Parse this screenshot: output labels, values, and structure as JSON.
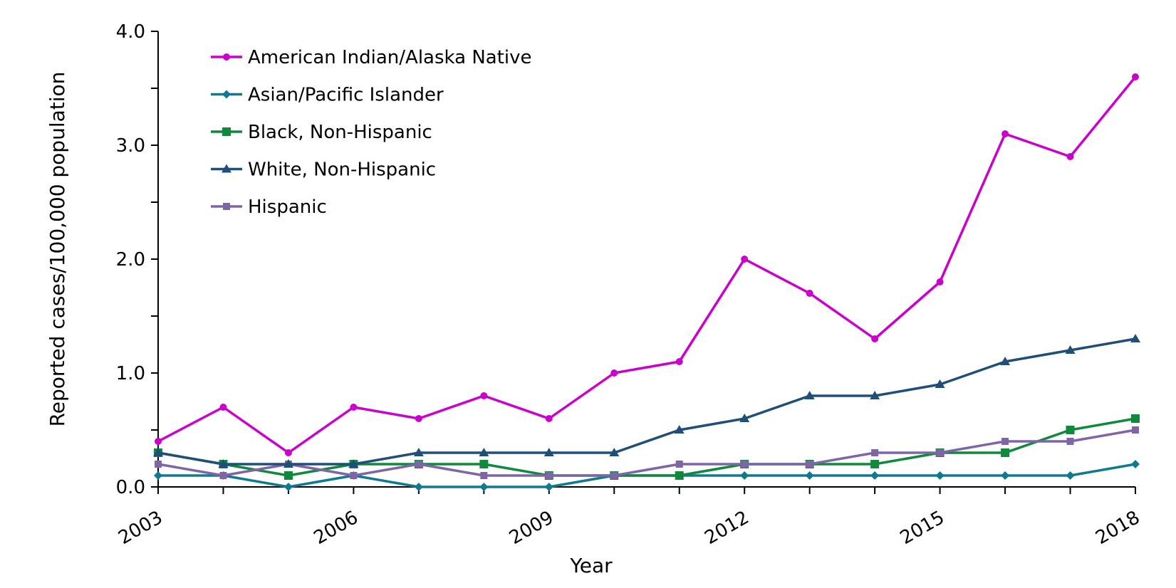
{
  "chart_data": {
    "type": "line",
    "xlabel": "Year",
    "ylabel": "Reported cases/100,000 population",
    "x": [
      2003,
      2004,
      2005,
      2006,
      2007,
      2008,
      2009,
      2010,
      2011,
      2012,
      2013,
      2014,
      2015,
      2016,
      2017,
      2018
    ],
    "x_tick_labels": [
      "2003",
      "2006",
      "2009",
      "2012",
      "2015",
      "2018"
    ],
    "y_tick_labels": [
      "0.0",
      "1.0",
      "2.0",
      "3.0",
      "4.0"
    ],
    "ylim": [
      0,
      4
    ],
    "xlim": [
      2003,
      2018
    ],
    "grid": false,
    "legend_position": "top-left",
    "series": [
      {
        "name": "American Indian/Alaska Native",
        "color": "#CC00CC",
        "marker": "circle",
        "values": [
          0.4,
          0.7,
          0.3,
          0.7,
          0.6,
          0.8,
          0.6,
          1.0,
          1.1,
          2.0,
          1.7,
          1.3,
          1.8,
          3.1,
          2.9,
          3.6
        ]
      },
      {
        "name": "Asian/Pacific Islander",
        "color": "#0E7A8F",
        "marker": "diamond",
        "values": [
          0.1,
          0.1,
          0.0,
          0.1,
          0.0,
          0.0,
          0.0,
          0.1,
          0.1,
          0.1,
          0.1,
          0.1,
          0.1,
          0.1,
          0.1,
          0.2
        ]
      },
      {
        "name": "Black, Non-Hispanic",
        "color": "#0F8A3C",
        "marker": "square",
        "values": [
          0.3,
          0.2,
          0.1,
          0.2,
          0.2,
          0.2,
          0.1,
          0.1,
          0.1,
          0.2,
          0.2,
          0.2,
          0.3,
          0.3,
          0.5,
          0.6
        ]
      },
      {
        "name": "White, Non-Hispanic",
        "color": "#1F4E79",
        "marker": "triangle",
        "values": [
          0.3,
          0.2,
          0.2,
          0.2,
          0.3,
          0.3,
          0.3,
          0.3,
          0.5,
          0.6,
          0.8,
          0.8,
          0.9,
          1.1,
          1.2,
          1.3
        ]
      },
      {
        "name": "Hispanic",
        "color": "#8064A8",
        "marker": "square-small",
        "values": [
          0.2,
          0.1,
          0.2,
          0.1,
          0.2,
          0.1,
          0.1,
          0.1,
          0.2,
          0.2,
          0.2,
          0.3,
          0.3,
          0.4,
          0.4,
          0.5
        ]
      }
    ]
  }
}
